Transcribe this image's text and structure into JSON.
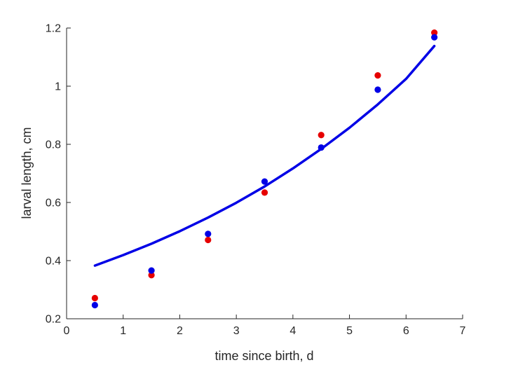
{
  "chart_data": {
    "type": "scatter",
    "title": "",
    "xlabel": "time since birth, d",
    "ylabel": "larval length, cm",
    "xlim": [
      0,
      7
    ],
    "ylim": [
      0.2,
      1.2
    ],
    "xticks": [
      0,
      1,
      2,
      3,
      4,
      5,
      6,
      7
    ],
    "yticks": [
      0.2,
      0.4,
      0.6,
      0.8,
      1.0,
      1.2
    ],
    "xtick_labels": [
      "0",
      "1",
      "2",
      "3",
      "4",
      "5",
      "6",
      "7"
    ],
    "ytick_labels": [
      "0.2",
      "0.4",
      "0.6",
      "0.8",
      "1",
      "1.2"
    ],
    "grid": false,
    "legend": "none",
    "series": [
      {
        "kind": "scatter",
        "color": "#e60000",
        "x": [
          0.5,
          1.5,
          2.5,
          3.5,
          4.5,
          5.5,
          6.5
        ],
        "y": [
          0.271,
          0.35,
          0.471,
          0.634,
          0.832,
          1.037,
          1.184
        ]
      },
      {
        "kind": "scatter",
        "color": "#0000e6",
        "x": [
          0.5,
          1.5,
          2.5,
          3.5,
          4.5,
          5.5,
          6.5
        ],
        "y": [
          0.247,
          0.366,
          0.492,
          0.672,
          0.789,
          0.988,
          1.168
        ]
      },
      {
        "kind": "line",
        "color": "#0000e6",
        "x": [
          0.5,
          1.0,
          1.5,
          2.0,
          2.5,
          3.0,
          3.5,
          4.0,
          4.5,
          5.0,
          5.5,
          6.0,
          6.5
        ],
        "y": [
          0.383,
          0.419,
          0.458,
          0.501,
          0.548,
          0.599,
          0.655,
          0.717,
          0.784,
          0.857,
          0.937,
          1.025,
          1.138
        ]
      }
    ]
  }
}
